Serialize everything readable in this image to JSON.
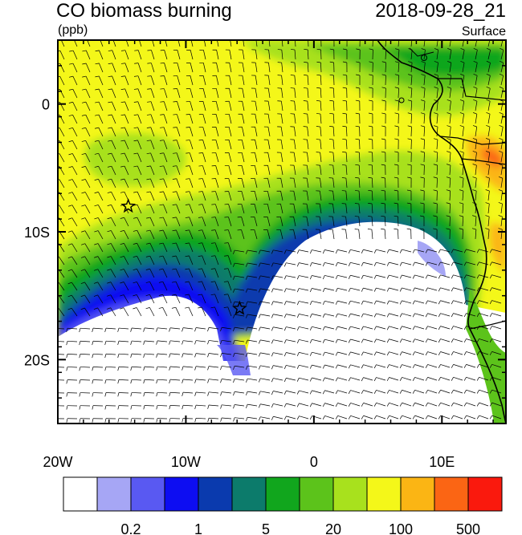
{
  "header": {
    "title": "CO biomass burning",
    "datetime": "2018-09-28_21",
    "units": "(ppb)",
    "level": "Surface"
  },
  "map": {
    "lon_range": [
      -20,
      15
    ],
    "lat_range": [
      -25,
      5
    ],
    "lon_ticks": [
      {
        "value": -20,
        "label": "20W"
      },
      {
        "value": -10,
        "label": "10W"
      },
      {
        "value": 0,
        "label": "0"
      },
      {
        "value": 10,
        "label": "10E"
      }
    ],
    "lat_ticks": [
      {
        "value": 0,
        "label": "0"
      },
      {
        "value": -10,
        "label": "10S"
      },
      {
        "value": -20,
        "label": "20S"
      }
    ],
    "markers": [
      {
        "name": "star-marker-north",
        "lon": -14.5,
        "lat": -8
      },
      {
        "name": "star-marker-south",
        "lon": -5.8,
        "lat": -16
      }
    ]
  },
  "colorbar": {
    "colors": [
      "#ffffff",
      "#a6a6f5",
      "#5959f2",
      "#0d0df2",
      "#0a3aae",
      "#0c7b6b",
      "#11a61d",
      "#5cc31b",
      "#a8e11d",
      "#f4f719",
      "#fbb514",
      "#fb6514",
      "#fa190d"
    ],
    "labels": [
      {
        "after_index": 1,
        "text": "0.2"
      },
      {
        "after_index": 3,
        "text": "1"
      },
      {
        "after_index": 5,
        "text": "5"
      },
      {
        "after_index": 7,
        "text": "20"
      },
      {
        "after_index": 9,
        "text": "100"
      },
      {
        "after_index": 11,
        "text": "500"
      }
    ]
  }
}
